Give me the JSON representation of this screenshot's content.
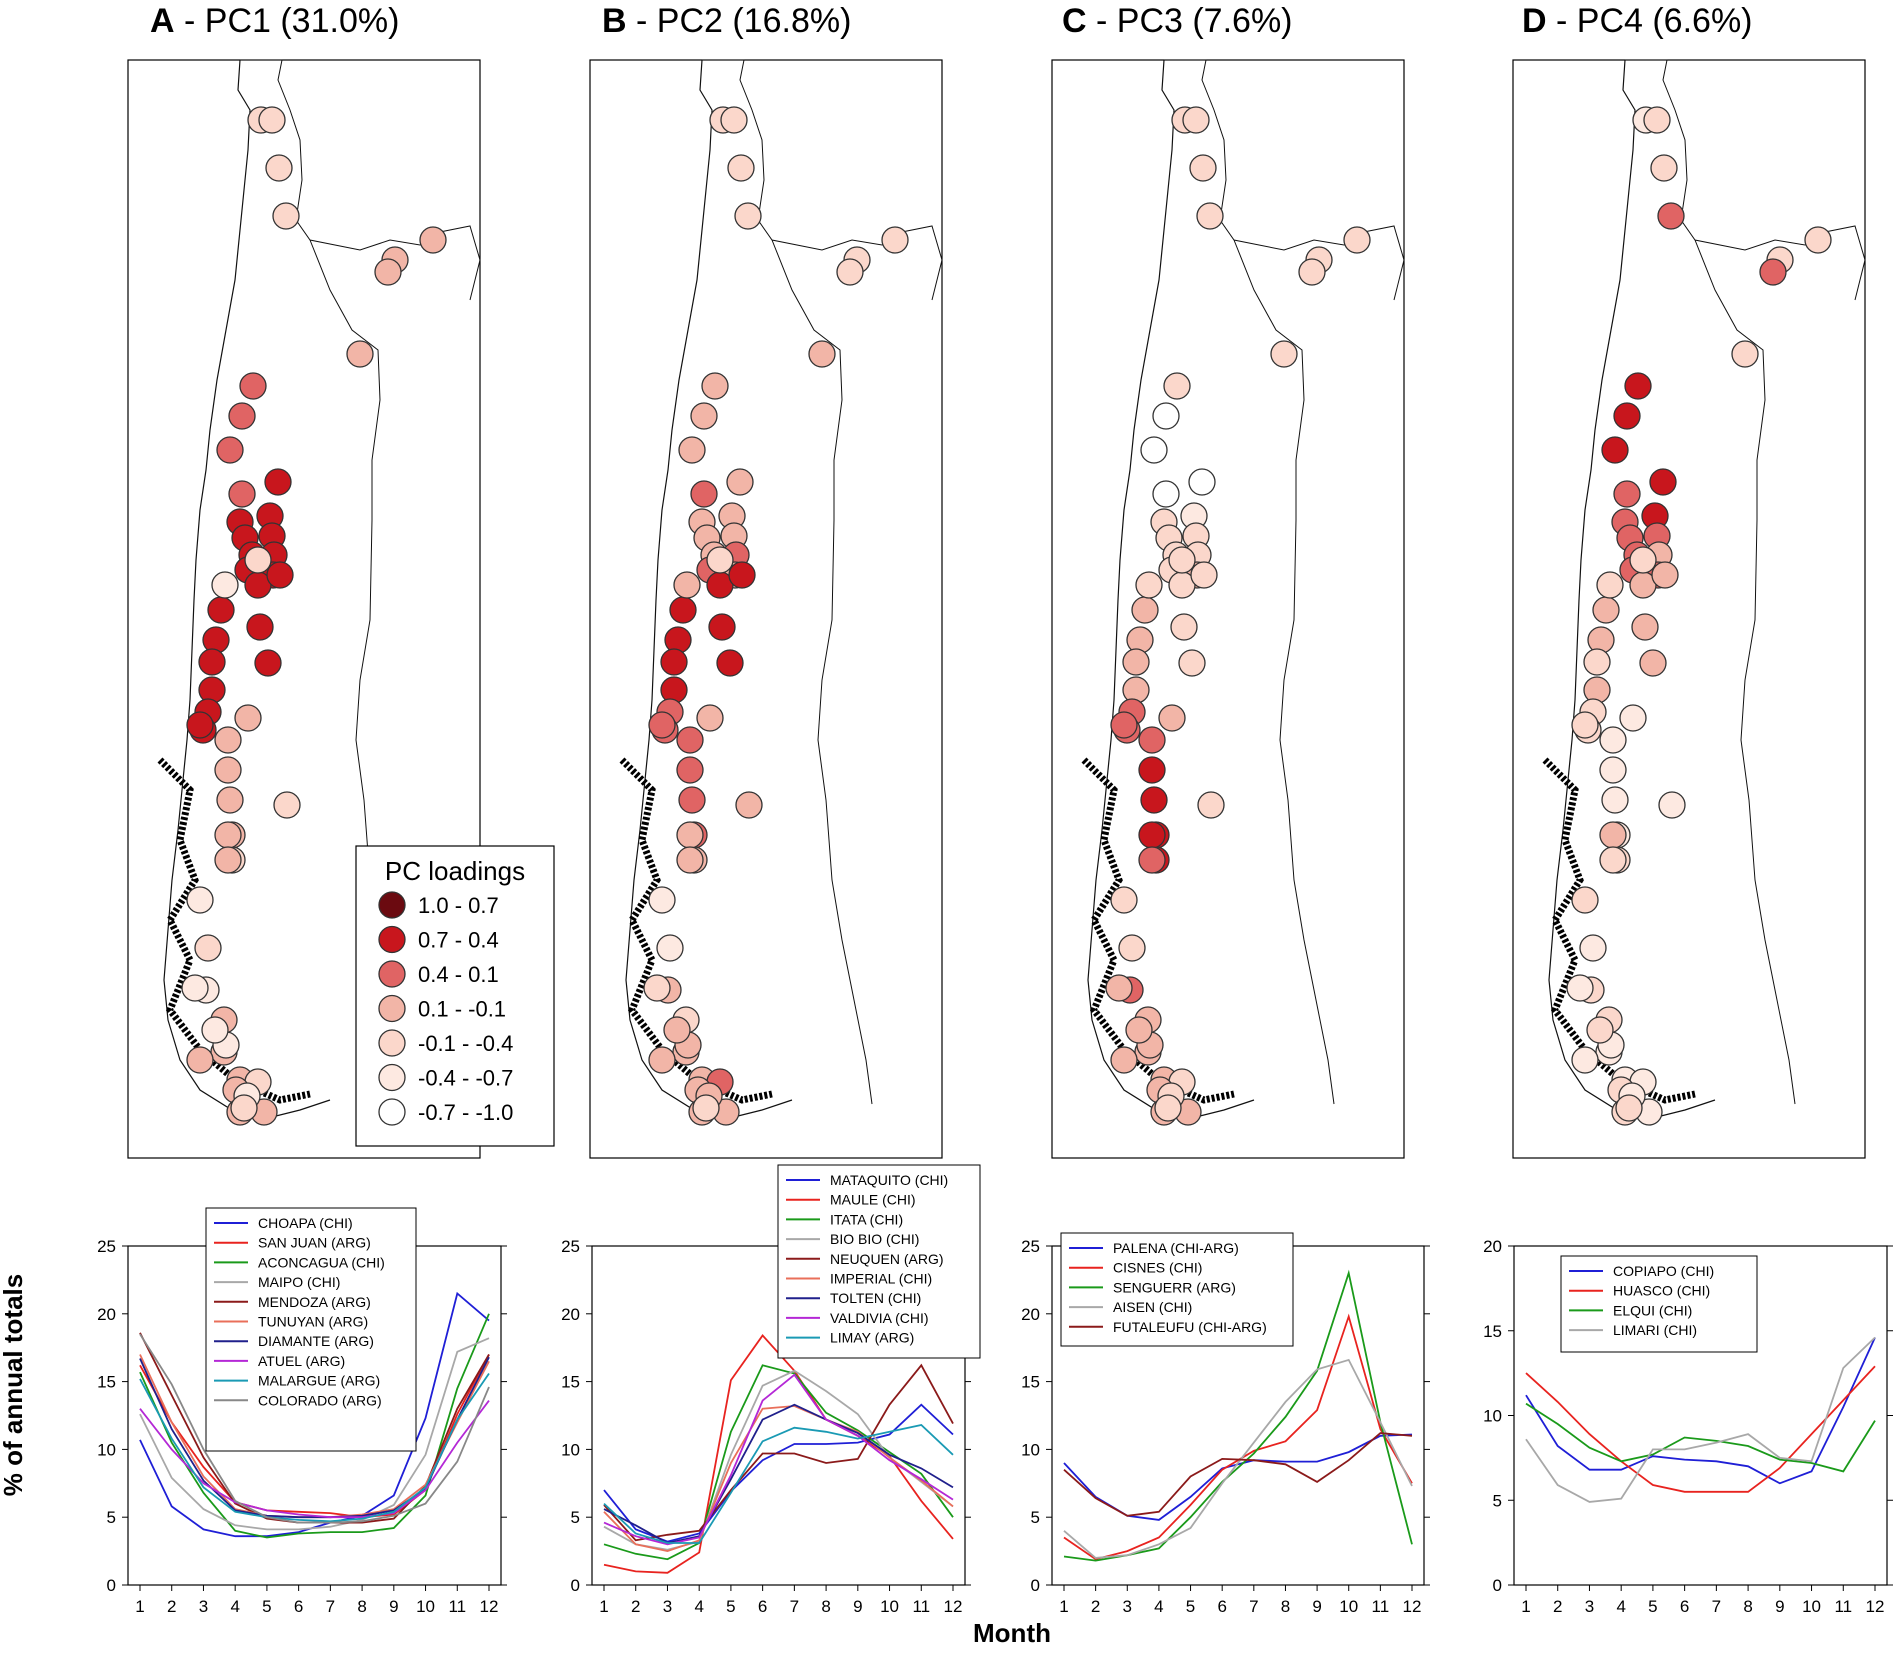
{
  "figure": {
    "ylabel": "% of annual totals",
    "xlabel": "Month",
    "legend": {
      "title": "PC loadings",
      "classes": [
        {
          "label": "1.0 - 0.7",
          "color": "#6b0a10"
        },
        {
          "label": "0.7 - 0.4",
          "color": "#c8161d"
        },
        {
          "label": "0.4 - 0.1",
          "color": "#e06464"
        },
        {
          "label": "0.1 - -0.1",
          "color": "#f2b5a7"
        },
        {
          "label": "-0.1 - -0.4",
          "color": "#fbd7cb"
        },
        {
          "label": "-0.4 - -0.7",
          "color": "#fde9e1"
        },
        {
          "label": "-0.7 - -1.0",
          "color": "#ffffff"
        }
      ]
    }
  },
  "chart_data": [
    {
      "type": "line",
      "letter": "A",
      "title": " - PC1 (31.0%)",
      "x": [
        1,
        2,
        3,
        4,
        5,
        6,
        7,
        8,
        9,
        10,
        11,
        12
      ],
      "xlabel": "Month",
      "ylabel": "% of annual totals",
      "ylim": [
        0,
        25
      ],
      "yticks": [
        0,
        5,
        10,
        15,
        20,
        25
      ],
      "legend_position": "top-center",
      "series": [
        {
          "name": "CHOAPA (CHI)",
          "color": "#1f1fd6",
          "values": [
            10.7,
            5.8,
            4.1,
            3.6,
            3.6,
            3.9,
            4.6,
            5.1,
            6.6,
            12.3,
            21.5,
            19.5
          ]
        },
        {
          "name": "SAN JUAN (ARG)",
          "color": "#e8231f",
          "values": [
            16.2,
            12.0,
            8.7,
            6.1,
            5.5,
            5.4,
            5.3,
            5.0,
            5.2,
            7.0,
            12.6,
            17.0
          ]
        },
        {
          "name": "ACONCAGUA (CHI)",
          "color": "#1a9a1a",
          "values": [
            15.7,
            10.5,
            6.8,
            4.0,
            3.5,
            3.8,
            3.9,
            3.9,
            4.2,
            6.6,
            14.5,
            20.0
          ]
        },
        {
          "name": "MAIPO (CHI)",
          "color": "#a8a8a8",
          "values": [
            12.6,
            7.9,
            5.6,
            4.4,
            4.1,
            4.1,
            4.3,
            4.8,
            5.9,
            9.6,
            17.2,
            18.2
          ]
        },
        {
          "name": "MENDOZA (ARG)",
          "color": "#8b1a1a",
          "values": [
            18.6,
            14.0,
            9.4,
            6.0,
            4.9,
            4.6,
            4.6,
            4.6,
            4.9,
            7.3,
            13.0,
            17.0
          ]
        },
        {
          "name": "TUNUYAN (ARG)",
          "color": "#e96f5a",
          "values": [
            17.0,
            12.0,
            8.0,
            5.6,
            5.1,
            5.0,
            5.0,
            5.2,
            5.6,
            7.4,
            12.0,
            16.5
          ]
        },
        {
          "name": "DIAMANTE (ARG)",
          "color": "#20208c",
          "values": [
            16.7,
            11.5,
            7.7,
            5.5,
            5.1,
            5.0,
            5.0,
            5.1,
            5.5,
            7.1,
            12.2,
            16.8
          ]
        },
        {
          "name": "ATUEL (ARG)",
          "color": "#b428d6",
          "values": [
            13.0,
            10.0,
            7.5,
            6.1,
            5.5,
            5.2,
            5.0,
            5.0,
            5.3,
            7.0,
            10.5,
            13.6
          ]
        },
        {
          "name": "MALARGUE (ARG)",
          "color": "#1a9ab4",
          "values": [
            15.2,
            10.8,
            7.2,
            5.4,
            5.0,
            4.8,
            4.7,
            4.9,
            5.4,
            7.2,
            12.2,
            15.6
          ]
        },
        {
          "name": "COLORADO (ARG)",
          "color": "#888888",
          "values": [
            18.5,
            14.8,
            10.0,
            6.2,
            5.0,
            4.6,
            4.6,
            4.7,
            5.1,
            6.0,
            9.1,
            14.6
          ]
        }
      ],
      "map_station_classes": [
        4,
        4,
        4,
        4,
        3,
        3,
        3,
        3,
        2,
        2,
        2,
        1,
        2,
        1,
        1,
        1,
        1,
        1,
        1,
        1,
        1,
        1,
        1,
        1,
        1,
        1,
        1,
        1,
        1,
        1,
        1,
        1,
        3,
        3,
        3,
        3,
        4,
        3,
        3,
        5,
        3,
        3,
        3,
        3,
        4,
        3,
        3,
        3,
        3,
        5,
        5,
        4,
        5,
        5,
        4,
        5,
        4,
        5,
        4
      ]
    },
    {
      "type": "line",
      "letter": "B",
      "title": " - PC2 (16.8%)",
      "x": [
        1,
        2,
        3,
        4,
        5,
        6,
        7,
        8,
        9,
        10,
        11,
        12
      ],
      "xlabel": "Month",
      "ylabel": "% of annual totals",
      "ylim": [
        0,
        25
      ],
      "yticks": [
        0,
        5,
        10,
        15,
        20,
        25
      ],
      "legend_position": "top-right",
      "series": [
        {
          "name": "MATAQUITO (CHI)",
          "color": "#1f1fd6",
          "values": [
            7.0,
            4.1,
            3.2,
            3.8,
            6.9,
            9.2,
            10.4,
            10.4,
            10.5,
            11.1,
            13.3,
            11.1
          ]
        },
        {
          "name": "MAULE (CHI)",
          "color": "#e8231f",
          "values": [
            1.5,
            1.0,
            0.9,
            2.4,
            15.1,
            18.4,
            15.8,
            12.2,
            11.0,
            9.5,
            6.2,
            3.4
          ]
        },
        {
          "name": "ITATA (CHI)",
          "color": "#1a9a1a",
          "values": [
            3.0,
            2.3,
            1.9,
            3.1,
            11.3,
            16.2,
            15.6,
            12.7,
            11.4,
            9.8,
            8.2,
            5.0
          ]
        },
        {
          "name": "BIO BIO (CHI)",
          "color": "#a8a8a8",
          "values": [
            4.3,
            3.0,
            2.6,
            3.2,
            9.6,
            14.7,
            15.8,
            14.3,
            12.6,
            9.4,
            7.6,
            5.8
          ]
        },
        {
          "name": "NEUQUEN (ARG)",
          "color": "#8b1a1a",
          "values": [
            5.9,
            3.3,
            3.7,
            4.0,
            7.0,
            9.7,
            9.7,
            9.0,
            9.3,
            13.3,
            16.2,
            11.9
          ]
        },
        {
          "name": "IMPERIAL (CHI)",
          "color": "#e96f5a",
          "values": [
            5.4,
            3.0,
            2.5,
            3.3,
            9.0,
            13.0,
            13.2,
            12.2,
            11.3,
            9.4,
            7.7,
            5.8
          ]
        },
        {
          "name": "TOLTEN (CHI)",
          "color": "#20208c",
          "values": [
            5.6,
            4.4,
            3.1,
            3.6,
            7.8,
            12.2,
            13.3,
            12.2,
            11.2,
            9.6,
            8.6,
            7.2
          ]
        },
        {
          "name": "VALDIVIA (CHI)",
          "color": "#b428d6",
          "values": [
            4.6,
            3.6,
            3.0,
            3.5,
            8.1,
            13.6,
            15.5,
            12.2,
            11.0,
            9.2,
            7.8,
            6.3
          ]
        },
        {
          "name": "LIMAY (ARG)",
          "color": "#1a9ab4",
          "values": [
            6.0,
            3.8,
            3.1,
            3.1,
            6.8,
            10.6,
            11.6,
            11.3,
            10.8,
            11.3,
            11.8,
            9.6
          ]
        }
      ],
      "map_station_classes": [
        4,
        4,
        4,
        4,
        4,
        4,
        4,
        3,
        3,
        3,
        3,
        3,
        2,
        3,
        3,
        3,
        3,
        3,
        2,
        2,
        3,
        1,
        1,
        1,
        1,
        1,
        1,
        1,
        1,
        2,
        2,
        2,
        2,
        2,
        2,
        2,
        3,
        3,
        3,
        3,
        4,
        3,
        3,
        3,
        2,
        3,
        3,
        3,
        3,
        3,
        3,
        3,
        3,
        5,
        5,
        4,
        4,
        3,
        4
      ]
    },
    {
      "type": "line",
      "letter": "C",
      "title": " - PC3 (7.6%)",
      "x": [
        1,
        2,
        3,
        4,
        5,
        6,
        7,
        8,
        9,
        10,
        11,
        12
      ],
      "xlabel": "Month",
      "ylabel": "% of annual totals",
      "ylim": [
        0,
        25
      ],
      "yticks": [
        0,
        5,
        10,
        15,
        20,
        25
      ],
      "legend_position": "top-left",
      "series": [
        {
          "name": "PALENA (CHI-ARG)",
          "color": "#1f1fd6",
          "values": [
            9.0,
            6.5,
            5.1,
            4.8,
            6.5,
            8.6,
            9.2,
            9.1,
            9.1,
            9.8,
            11.0,
            11.1
          ]
        },
        {
          "name": "CISNES (CHI)",
          "color": "#e8231f",
          "values": [
            3.5,
            1.9,
            2.5,
            3.5,
            5.9,
            8.5,
            9.9,
            10.6,
            12.9,
            19.8,
            11.5,
            7.5
          ]
        },
        {
          "name": "SENGUERR (ARG)",
          "color": "#1a9a1a",
          "values": [
            2.1,
            1.8,
            2.2,
            2.7,
            5.0,
            7.6,
            9.7,
            12.4,
            15.8,
            23.0,
            12.0,
            3.0
          ]
        },
        {
          "name": "AISEN (CHI)",
          "color": "#a8a8a8",
          "values": [
            4.0,
            2.0,
            2.2,
            3.0,
            4.2,
            7.5,
            10.5,
            13.5,
            15.9,
            16.6,
            12.0,
            7.3
          ]
        },
        {
          "name": "FUTALEUFU (CHI-ARG)",
          "color": "#8b1a1a",
          "values": [
            8.5,
            6.4,
            5.1,
            5.4,
            8.0,
            9.3,
            9.2,
            8.9,
            7.6,
            9.2,
            11.2,
            11.0
          ]
        }
      ],
      "map_station_classes": [
        4,
        4,
        4,
        4,
        4,
        4,
        4,
        4,
        4,
        6,
        6,
        6,
        6,
        5,
        4,
        4,
        4,
        4,
        4,
        4,
        3,
        4,
        4,
        4,
        4,
        3,
        3,
        3,
        3,
        2,
        2,
        2,
        2,
        1,
        1,
        1,
        1,
        1,
        2,
        2,
        3,
        3,
        3,
        3,
        4,
        3,
        3,
        3,
        3,
        3,
        3,
        4,
        4,
        4,
        4,
        3,
        4,
        4,
        4
      ]
    },
    {
      "type": "line",
      "letter": "D",
      "title": " - PC4 (6.6%)",
      "x": [
        1,
        2,
        3,
        4,
        5,
        6,
        7,
        8,
        9,
        10,
        11,
        12
      ],
      "xlabel": "Month",
      "ylabel": "% of annual totals",
      "ylim": [
        0,
        20
      ],
      "yticks": [
        0,
        5,
        10,
        15,
        20
      ],
      "legend_position": "top-left",
      "series": [
        {
          "name": "COPIAPO (CHI)",
          "color": "#1f1fd6",
          "values": [
            11.2,
            8.2,
            6.8,
            6.8,
            7.6,
            7.4,
            7.3,
            7.0,
            6.0,
            6.7,
            10.5,
            14.6
          ]
        },
        {
          "name": "HUASCO (CHI)",
          "color": "#e8231f",
          "values": [
            12.5,
            10.8,
            8.9,
            7.3,
            5.9,
            5.5,
            5.5,
            5.5,
            6.9,
            8.9,
            10.9,
            12.9
          ]
        },
        {
          "name": "ELQUI (CHI)",
          "color": "#1a9a1a",
          "values": [
            10.7,
            9.5,
            8.1,
            7.3,
            7.7,
            8.7,
            8.5,
            8.2,
            7.4,
            7.2,
            6.7,
            9.7
          ]
        },
        {
          "name": "LIMARI (CHI)",
          "color": "#a8a8a8",
          "values": [
            8.6,
            5.9,
            4.9,
            5.1,
            8.0,
            8.0,
            8.4,
            8.9,
            7.5,
            7.3,
            12.8,
            14.6
          ]
        }
      ],
      "map_station_classes": [
        5,
        4,
        4,
        2,
        4,
        4,
        2,
        4,
        1,
        1,
        1,
        1,
        2,
        1,
        2,
        2,
        2,
        2,
        2,
        3,
        2,
        3,
        3,
        3,
        3,
        3,
        3,
        4,
        3,
        4,
        4,
        4,
        5,
        5,
        5,
        5,
        4,
        3,
        4,
        4,
        4,
        5,
        5,
        5,
        5,
        4,
        5,
        4,
        5,
        5,
        4,
        5,
        4,
        4,
        5,
        5,
        4,
        5,
        4
      ]
    }
  ]
}
